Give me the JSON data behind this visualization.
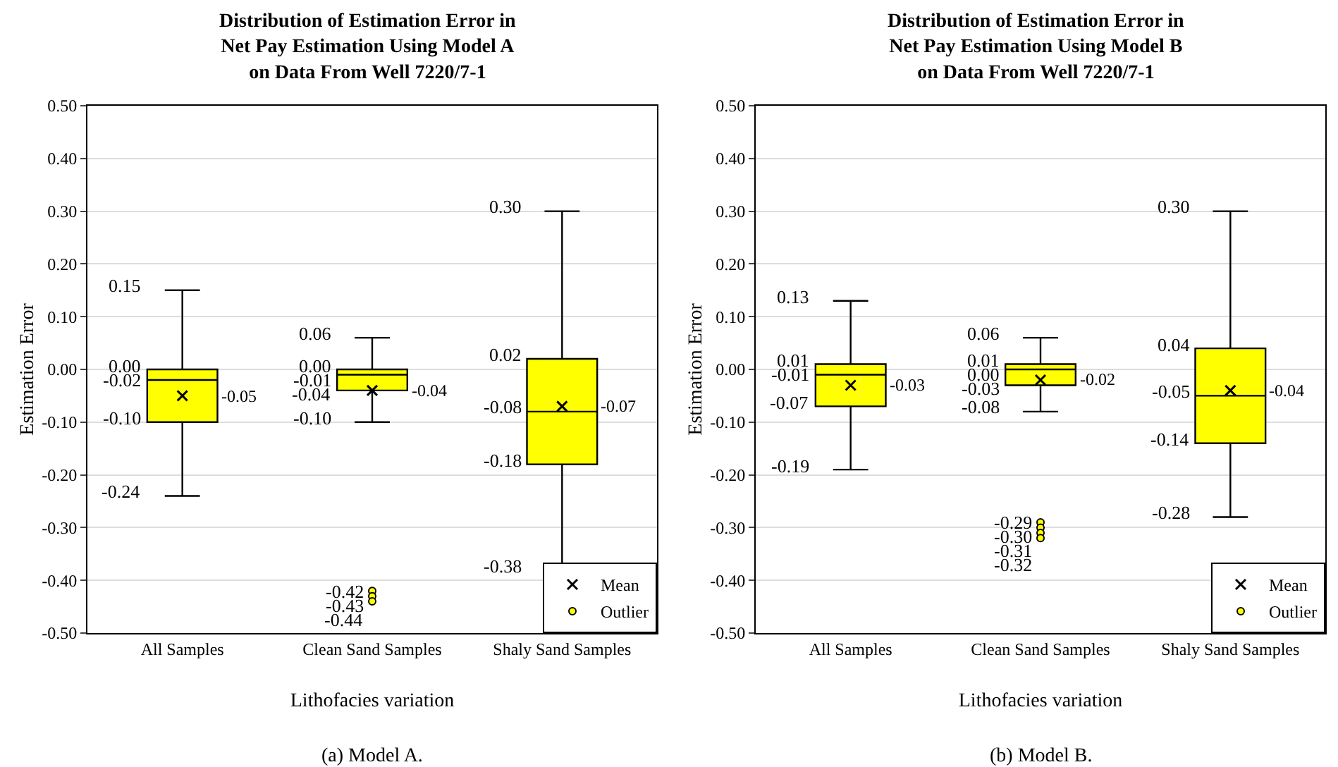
{
  "chart_data": [
    {
      "type": "box",
      "title": "Distribution of Estimation Error in\nNet Pay Estimation Using Model A\non Data From Well 7220/7-1",
      "xlabel": "Lithofacies variation",
      "ylabel": "Estimation Error",
      "categories": [
        "All Samples",
        "Clean Sand Samples",
        "Shaly Sand Samples"
      ],
      "series": [
        {
          "type": "box",
          "color": "#ffff00",
          "boxes": [
            {
              "low": -0.24,
              "q1": -0.1,
              "median": -0.02,
              "q3": 0.0,
              "high": 0.15
            },
            {
              "low": -0.1,
              "q1": -0.04,
              "median": -0.01,
              "q3": 0.0,
              "high": 0.06
            },
            {
              "low": -0.38,
              "q1": -0.18,
              "median": -0.08,
              "q3": 0.02,
              "high": 0.3
            }
          ]
        },
        {
          "type": "scatter",
          "name": "Mean",
          "marker": "cross",
          "color": "#000000",
          "x": [
            "All Samples",
            "Clean Sand Samples",
            "Shaly Sand Samples"
          ],
          "values": [
            -0.05,
            -0.04,
            -0.07
          ]
        },
        {
          "type": "scatter",
          "name": "Outlier",
          "marker": "circle",
          "color": "#ffff00",
          "x": [
            "Clean Sand Samples",
            "Clean Sand Samples",
            "Clean Sand Samples"
          ],
          "values": [
            -0.42,
            -0.43,
            -0.44
          ],
          "value_labels": [
            "-0.42",
            "-0.43",
            "-0.44"
          ]
        }
      ],
      "ylim": [
        -0.5,
        0.5
      ],
      "yticks": [
        {
          "value": -0.5,
          "label": "-0.50"
        },
        {
          "value": -0.4,
          "label": "-0.40"
        },
        {
          "value": -0.3,
          "label": "-0.30"
        },
        {
          "value": -0.2,
          "label": "-0.20"
        },
        {
          "value": -0.1,
          "label": "-0.10"
        },
        {
          "value": 0,
          "label": "0.00"
        },
        {
          "value": 0.1,
          "label": "0.10"
        },
        {
          "value": 0.2,
          "label": "0.20"
        },
        {
          "value": 0.3,
          "label": "0.30"
        },
        {
          "value": 0.4,
          "label": "0.40"
        },
        {
          "value": 0.5,
          "label": "0.50"
        }
      ],
      "grid": "y",
      "legend": "bottom right",
      "annotations": [
        {
          "text": "0.15",
          "x": "All Samples",
          "y": 0.15
        },
        {
          "text": "0.00",
          "x": "All Samples",
          "y": 0.0
        },
        {
          "text": "-0.02",
          "x": "All Samples",
          "y": -0.02
        },
        {
          "text": "-0.10",
          "x": "All Samples",
          "y": -0.1
        },
        {
          "text": "-0.24",
          "x": "All Samples",
          "y": -0.24
        },
        {
          "text": "-0.05",
          "x": "All Samples",
          "y": -0.05
        },
        {
          "text": "-0.04",
          "x": "Clean Sand Samples",
          "y": -0.04
        },
        {
          "text": "-0.07",
          "x": "Shaly Sand Samples",
          "y": -0.07
        },
        {
          "text": "0.06",
          "x": "Clean Sand Samples",
          "y": 0.06
        },
        {
          "text": "0.00",
          "x": "Clean Sand Samples",
          "y": 0.0
        },
        {
          "text": "-0.01",
          "x": "Clean Sand Samples",
          "y": -0.01
        },
        {
          "text": "-0.04",
          "x": "Clean Sand Samples",
          "y": -0.04
        },
        {
          "text": "-0.10",
          "x": "Clean Sand Samples",
          "y": -0.1
        },
        {
          "text": "0.30",
          "x": "Shaly Sand Samples",
          "y": 0.3
        },
        {
          "text": "0.02",
          "x": "Shaly Sand Samples",
          "y": 0.02
        },
        {
          "text": "-0.08",
          "x": "Shaly Sand Samples",
          "y": -0.08
        },
        {
          "text": "-0.18",
          "x": "Shaly Sand Samples",
          "y": -0.18
        },
        {
          "text": "-0.38",
          "x": "Shaly Sand Samples",
          "y": -0.38
        },
        "(a) Model A."
      ]
    },
    {
      "type": "box",
      "title": "Distribution of Estimation Error in\nNet Pay Estimation Using Model B\non Data From Well 7220/7-1",
      "xlabel": "Lithofacies variation",
      "ylabel": "Estimation Error",
      "categories": [
        "All Samples",
        "Clean Sand Samples",
        "Shaly Sand Samples"
      ],
      "series": [
        {
          "type": "box",
          "color": "#ffff00",
          "boxes": [
            {
              "low": -0.19,
              "q1": -0.07,
              "median": -0.01,
              "q3": 0.01,
              "high": 0.13
            },
            {
              "low": -0.08,
              "q1": -0.03,
              "median": 0.0,
              "q3": 0.01,
              "high": 0.06
            },
            {
              "low": -0.28,
              "q1": -0.14,
              "median": -0.05,
              "q3": 0.04,
              "high": 0.3
            }
          ]
        },
        {
          "type": "scatter",
          "name": "Mean",
          "marker": "cross",
          "color": "#000000",
          "x": [
            "All Samples",
            "Clean Sand Samples",
            "Shaly Sand Samples"
          ],
          "values": [
            -0.03,
            -0.02,
            -0.04
          ]
        },
        {
          "type": "scatter",
          "name": "Outlier",
          "marker": "circle",
          "color": "#ffff00",
          "x": [
            "Clean Sand Samples",
            "Clean Sand Samples",
            "Clean Sand Samples",
            "Clean Sand Samples"
          ],
          "values": [
            -0.29,
            -0.3,
            -0.31,
            -0.32
          ],
          "value_labels": [
            "-0.29",
            "-0.30",
            "-0.31",
            "-0.32"
          ]
        }
      ],
      "ylim": [
        -0.5,
        0.5
      ],
      "yticks": [
        {
          "value": -0.5,
          "label": "-0.50"
        },
        {
          "value": -0.4,
          "label": "-0.40"
        },
        {
          "value": -0.3,
          "label": "-0.30"
        },
        {
          "value": -0.2,
          "label": "-0.20"
        },
        {
          "value": -0.1,
          "label": "-0.10"
        },
        {
          "value": 0,
          "label": "0.00"
        },
        {
          "value": 0.1,
          "label": "0.10"
        },
        {
          "value": 0.2,
          "label": "0.20"
        },
        {
          "value": 0.3,
          "label": "0.30"
        },
        {
          "value": 0.4,
          "label": "0.40"
        },
        {
          "value": 0.5,
          "label": "0.50"
        }
      ],
      "grid": "y",
      "legend": "bottom right",
      "annotations": [
        {
          "text": "0.13",
          "x": "All Samples",
          "y": 0.13
        },
        {
          "text": "0.01",
          "x": "All Samples",
          "y": 0.01
        },
        {
          "text": "-0.01",
          "x": "All Samples",
          "y": -0.01
        },
        {
          "text": "-0.07",
          "x": "All Samples",
          "y": -0.07
        },
        {
          "text": "-0.19",
          "x": "All Samples",
          "y": -0.19
        },
        {
          "text": "-0.03",
          "x": "All Samples",
          "y": -0.03
        },
        {
          "text": "-0.02",
          "x": "Clean Sand Samples",
          "y": -0.02
        },
        {
          "text": "-0.04",
          "x": "Shaly Sand Samples",
          "y": -0.04
        },
        {
          "text": "0.06",
          "x": "Clean Sand Samples",
          "y": 0.06
        },
        {
          "text": "0.01",
          "x": "Clean Sand Samples",
          "y": 0.01
        },
        {
          "text": "0.00",
          "x": "Clean Sand Samples",
          "y": 0.0
        },
        {
          "text": "-0.03",
          "x": "Clean Sand Samples",
          "y": -0.03
        },
        {
          "text": "-0.08",
          "x": "Clean Sand Samples",
          "y": -0.08
        },
        {
          "text": "0.30",
          "x": "Shaly Sand Samples",
          "y": 0.3
        },
        {
          "text": "0.04",
          "x": "Shaly Sand Samples",
          "y": 0.04
        },
        {
          "text": "-0.05",
          "x": "Shaly Sand Samples",
          "y": -0.05
        },
        {
          "text": "-0.14",
          "x": "Shaly Sand Samples",
          "y": -0.14
        },
        {
          "text": "-0.28",
          "x": "Shaly Sand Samples",
          "y": -0.28
        },
        "(b) Model B."
      ]
    }
  ]
}
